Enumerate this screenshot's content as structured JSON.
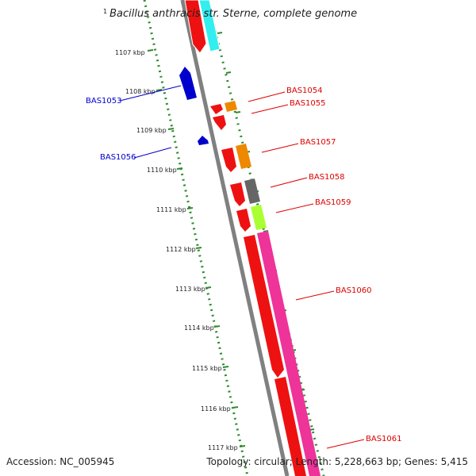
{
  "title": {
    "index": "1",
    "organism": "Bacillus anthracis str. Sterne, complete genome"
  },
  "footer": {
    "accession": "Accession: NC_005945",
    "summary": "Topology: circular; Length: 5,228,663 bp; Genes: 5,415"
  },
  "ruler": {
    "ticks": [
      "1107 kbp",
      "1108 kbp",
      "1109 kbp",
      "1110 kbp",
      "1111 kbp",
      "1112 kbp",
      "1113 kbp",
      "1114 kbp",
      "1115 kbp",
      "1116 kbp",
      "1117 kbp"
    ],
    "color": "#2e8b2e"
  },
  "genes": [
    {
      "label": "BAS1053",
      "strand": "reverse",
      "color": "#0000cc"
    },
    {
      "label": "BAS1054",
      "strand": "forward",
      "color": "#dd0000"
    },
    {
      "label": "BAS1055",
      "strand": "forward",
      "color": "#dd0000"
    },
    {
      "label": "BAS1056",
      "strand": "reverse",
      "color": "#0000cc"
    },
    {
      "label": "BAS1057",
      "strand": "forward",
      "color": "#dd0000"
    },
    {
      "label": "BAS1058",
      "strand": "forward",
      "color": "#dd0000"
    },
    {
      "label": "BAS1059",
      "strand": "forward",
      "color": "#dd0000"
    },
    {
      "label": "BAS1060",
      "strand": "forward",
      "color": "#dd0000"
    },
    {
      "label": "BAS1061",
      "strand": "forward",
      "color": "#dd0000"
    }
  ],
  "colors": {
    "backbone": "#808080",
    "gene_red": "#ee1111",
    "gene_blue": "#0000cc",
    "cog_cyan": "#33eeee",
    "cog_orange": "#ee8800",
    "cog_gray": "#666666",
    "cog_lime": "#aaff33",
    "cog_pink": "#ee3399"
  }
}
